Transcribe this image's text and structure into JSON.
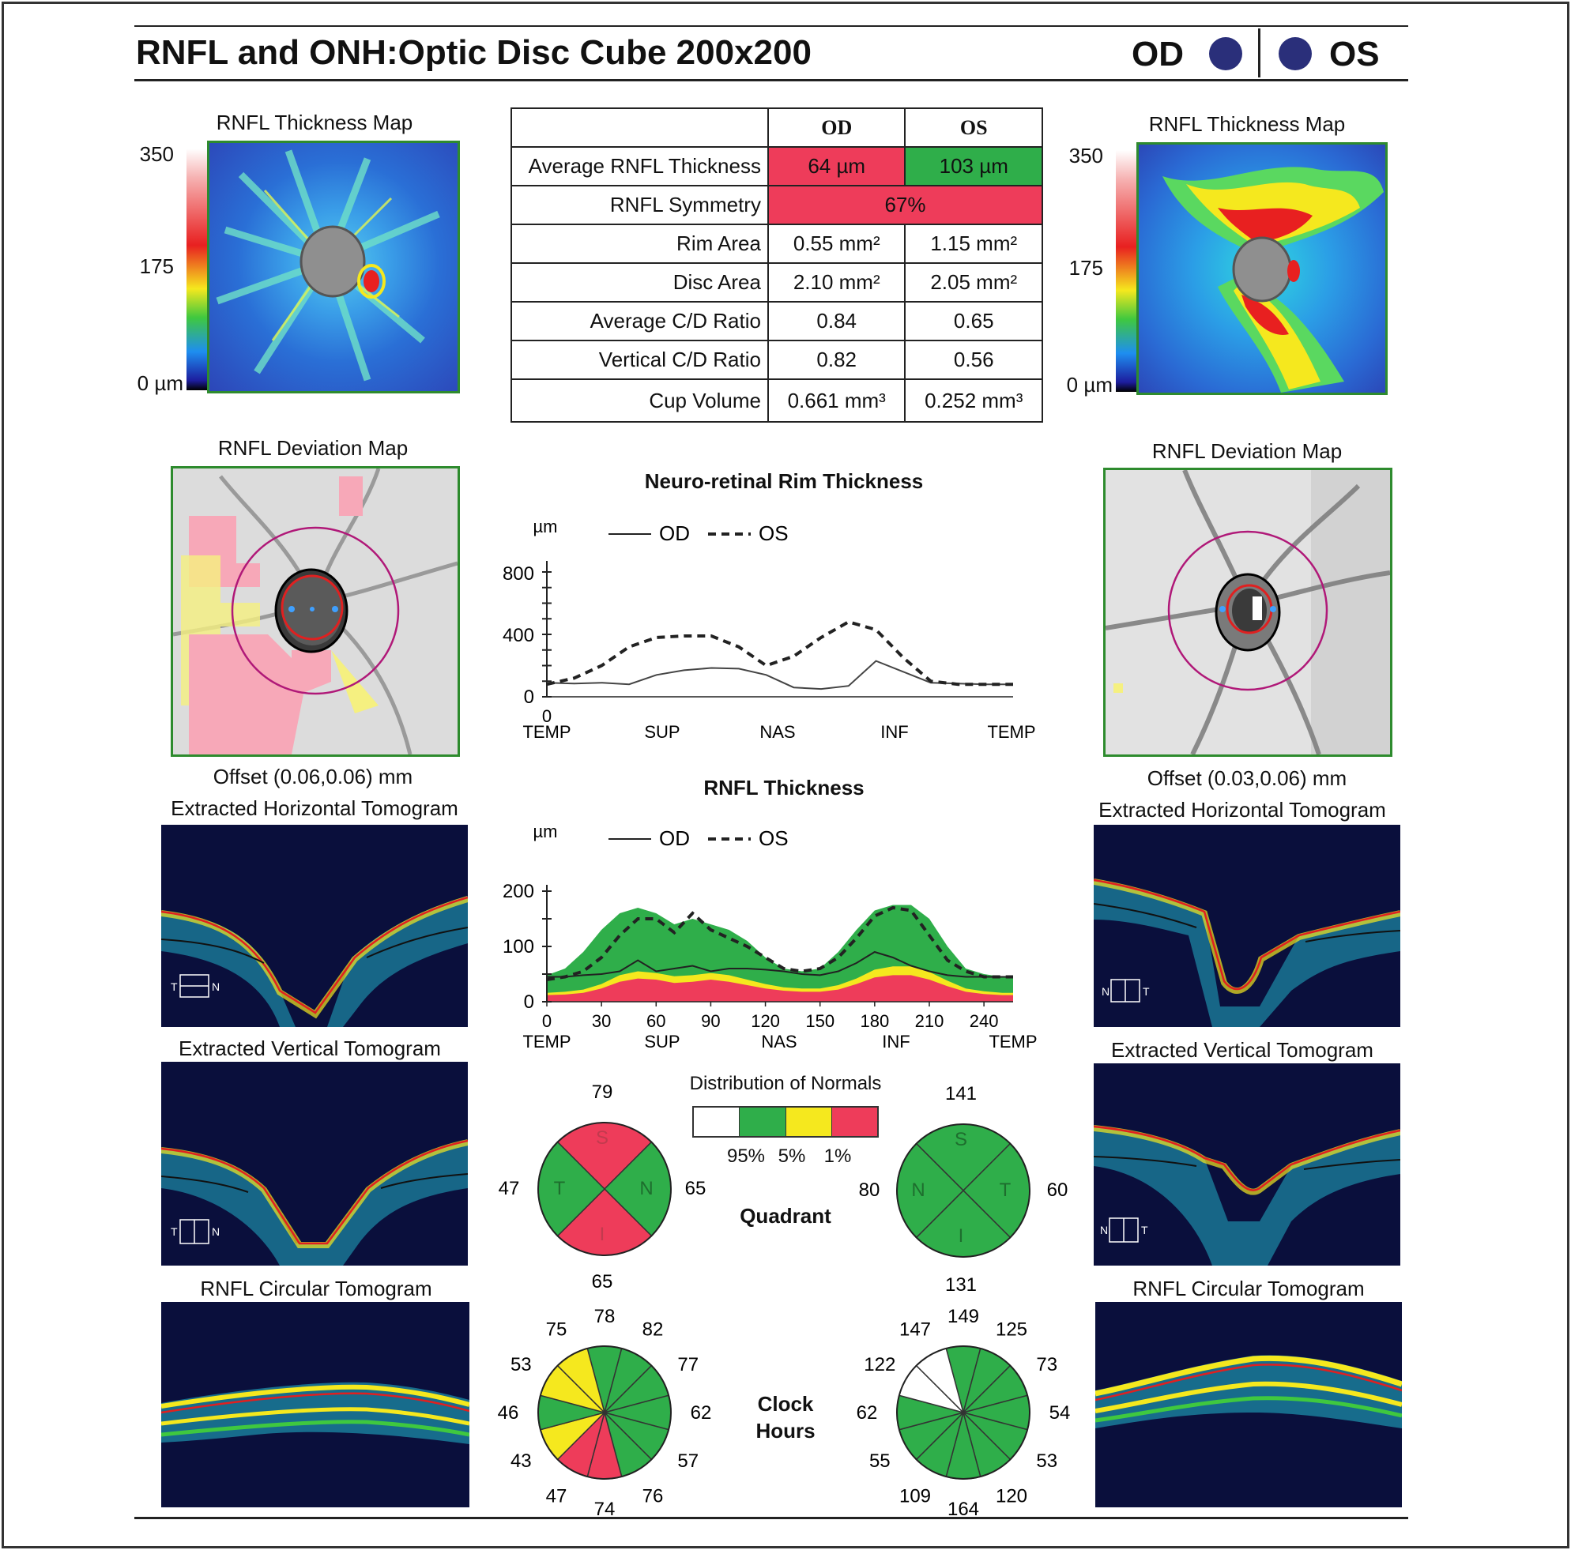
{
  "header": {
    "title": "RNFL and ONH:Optic Disc Cube 200x200",
    "od": "OD",
    "os": "OS"
  },
  "thickness_map": {
    "title": "RNFL Thickness Map",
    "scale": [
      "350",
      "175",
      "0 µm"
    ]
  },
  "deviation_map": {
    "title": "RNFL Deviation Map",
    "od_offset": "Offset  (0.06,0.06) mm",
    "os_offset": "Offset  (0.03,0.06) mm"
  },
  "tomograms": {
    "horizontal": "Extracted Horizontal Tomogram",
    "vertical": "Extracted Vertical Tomogram",
    "circular": "RNFL Circular Tomogram"
  },
  "params_table": {
    "col_od": "OD",
    "col_os": "OS",
    "rows": [
      {
        "label": "Average RNFL Thickness",
        "od": "64 µm",
        "os": "103 µm"
      },
      {
        "label": "RNFL Symmetry",
        "both": "67%"
      },
      {
        "label": "Rim Area",
        "od": "0.55 mm²",
        "os": "1.15 mm²"
      },
      {
        "label": "Disc Area",
        "od": "2.10 mm²",
        "os": "2.05 mm²"
      },
      {
        "label": "Average C/D Ratio",
        "od": "0.84",
        "os": "0.65"
      },
      {
        "label": "Vertical C/D Ratio",
        "od": "0.82",
        "os": "0.56"
      },
      {
        "label": "Cup Volume",
        "od": "0.661 mm³",
        "os": "0.252 mm³"
      }
    ],
    "colors": {
      "abnormal": "#ee3c5a",
      "normal": "#2fae4a"
    }
  },
  "chart_data": [
    {
      "type": "line",
      "title": "Neuro-retinal Rim Thickness",
      "ylabel": "µm",
      "ylim": [
        0,
        800
      ],
      "yticks": [
        "800",
        "400",
        "0"
      ],
      "xticks": [
        "0",
        "TEMP",
        "SUP",
        "NAS",
        "INF",
        "TEMP"
      ],
      "legend": [
        "OD",
        "OS"
      ],
      "series": [
        {
          "name": "OD",
          "style": "solid",
          "values": [
            90,
            85,
            90,
            80,
            140,
            170,
            185,
            180,
            140,
            60,
            50,
            70,
            230,
            160,
            90,
            85,
            80,
            80
          ]
        },
        {
          "name": "OS",
          "style": "dashed",
          "values": [
            80,
            120,
            200,
            320,
            380,
            390,
            390,
            320,
            200,
            260,
            380,
            480,
            430,
            250,
            100,
            80,
            80,
            80
          ]
        }
      ]
    },
    {
      "type": "area",
      "title": "RNFL Thickness",
      "ylabel": "µm",
      "ylim": [
        0,
        200
      ],
      "yticks": [
        "200",
        "100",
        "0"
      ],
      "xticks": [
        "0",
        "30",
        "60",
        "90",
        "120",
        "150",
        "180",
        "210",
        "240"
      ],
      "xregions": [
        "TEMP",
        "SUP",
        "NAS",
        "INF",
        "TEMP"
      ],
      "legend": [
        "OD",
        "OS"
      ],
      "normal_bands": {
        "x": [
          0,
          10,
          20,
          30,
          40,
          50,
          60,
          70,
          80,
          90,
          100,
          110,
          120,
          130,
          140,
          150,
          160,
          170,
          180,
          190,
          200,
          210,
          220,
          230,
          240,
          250,
          256
        ],
        "p1": [
          12,
          13,
          16,
          24,
          36,
          42,
          40,
          34,
          36,
          40,
          36,
          30,
          24,
          20,
          18,
          18,
          22,
          32,
          44,
          48,
          48,
          40,
          28,
          18,
          14,
          12,
          12
        ],
        "p5": [
          16,
          18,
          22,
          32,
          48,
          55,
          52,
          46,
          48,
          52,
          48,
          40,
          32,
          26,
          24,
          24,
          30,
          42,
          58,
          64,
          64,
          54,
          38,
          24,
          19,
          16,
          16
        ],
        "p95": [
          48,
          60,
          90,
          130,
          160,
          170,
          160,
          140,
          150,
          140,
          130,
          110,
          80,
          60,
          55,
          60,
          90,
          130,
          165,
          175,
          175,
          150,
          100,
          60,
          50,
          45,
          45
        ]
      },
      "series": [
        {
          "name": "OD",
          "style": "solid",
          "x": [
            0,
            10,
            20,
            30,
            40,
            50,
            60,
            70,
            80,
            90,
            100,
            110,
            120,
            130,
            140,
            150,
            160,
            170,
            180,
            190,
            200,
            210,
            220,
            230,
            240,
            250,
            256
          ],
          "values": [
            45,
            45,
            48,
            50,
            55,
            75,
            55,
            60,
            65,
            55,
            60,
            60,
            58,
            55,
            50,
            48,
            55,
            70,
            90,
            80,
            65,
            55,
            48,
            45,
            45,
            45,
            45
          ]
        },
        {
          "name": "OS",
          "style": "dashed",
          "x": [
            0,
            10,
            20,
            30,
            40,
            50,
            60,
            70,
            80,
            90,
            100,
            110,
            120,
            130,
            140,
            150,
            160,
            170,
            180,
            190,
            200,
            210,
            220,
            230,
            240,
            250,
            256
          ],
          "values": [
            40,
            45,
            55,
            80,
            120,
            150,
            150,
            125,
            160,
            130,
            115,
            100,
            80,
            60,
            55,
            60,
            80,
            115,
            155,
            170,
            165,
            120,
            75,
            55,
            45,
            45,
            45
          ]
        }
      ]
    }
  ],
  "distribution_of_normals": {
    "title": "Distribution of Normals",
    "labels": [
      "95%",
      "5%",
      "1%"
    ],
    "colors": [
      "#ffffff",
      "#2fae4a",
      "#f5e81e",
      "#ee3c5a"
    ]
  },
  "quadrant": {
    "title": "Quadrant",
    "od": {
      "S": "79",
      "N": "65",
      "I": "65",
      "T": "47",
      "letters": [
        "S",
        "N",
        "I",
        "T"
      ],
      "colors": {
        "S": "#ee3c5a",
        "N": "#2fae4a",
        "I": "#ee3c5a",
        "T": "#2fae4a"
      }
    },
    "os": {
      "S": "141",
      "T": "60",
      "I": "131",
      "N": "80",
      "letters": [
        "S",
        "T",
        "I",
        "N"
      ],
      "colors": {
        "S": "#2fae4a",
        "T": "#2fae4a",
        "I": "#2fae4a",
        "N": "#2fae4a"
      }
    }
  },
  "clock_hours": {
    "title_line1": "Clock",
    "title_line2": "Hours",
    "od": {
      "values": [
        "78",
        "82",
        "77",
        "62",
        "57",
        "76",
        "74",
        "47",
        "43",
        "46",
        "53",
        "75"
      ],
      "colors": [
        "#2fae4a",
        "#2fae4a",
        "#2fae4a",
        "#2fae4a",
        "#2fae4a",
        "#2fae4a",
        "#ee3c5a",
        "#ee3c5a",
        "#f5e81e",
        "#2fae4a",
        "#f5e81e",
        "#f5e81e"
      ]
    },
    "os": {
      "values": [
        "149",
        "125",
        "73",
        "54",
        "53",
        "120",
        "164",
        "109",
        "55",
        "62",
        "122",
        "147"
      ],
      "colors": [
        "#2fae4a",
        "#2fae4a",
        "#2fae4a",
        "#2fae4a",
        "#2fae4a",
        "#2fae4a",
        "#2fae4a",
        "#2fae4a",
        "#2fae4a",
        "#2fae4a",
        "#ffffff",
        "#ffffff"
      ]
    }
  },
  "orientation": {
    "t": "T",
    "n": "N"
  }
}
